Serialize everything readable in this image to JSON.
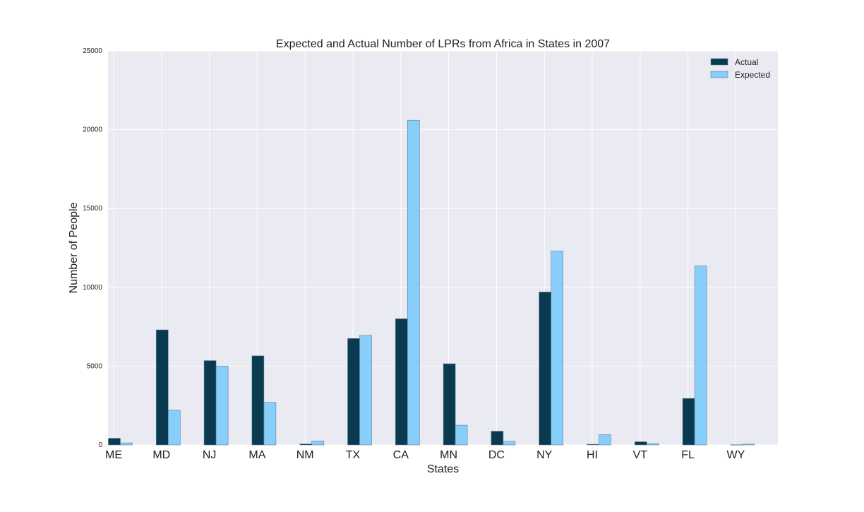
{
  "chart_data": {
    "type": "bar",
    "title": "Expected and Actual Number of LPRs from Africa in States in 2007",
    "xlabel": "States",
    "ylabel": "Number of People",
    "categories": [
      "ME",
      "MD",
      "NJ",
      "MA",
      "NM",
      "TX",
      "CA",
      "MN",
      "DC",
      "NY",
      "HI",
      "VT",
      "FL",
      "WY"
    ],
    "series": [
      {
        "name": "Actual",
        "color": "#0a3a4f",
        "values": [
          420,
          7300,
          5350,
          5650,
          60,
          6750,
          8000,
          5150,
          870,
          9700,
          40,
          200,
          2950,
          10
        ]
      },
      {
        "name": "Expected",
        "color": "#87cefa",
        "values": [
          130,
          2200,
          5000,
          2700,
          250,
          6950,
          20600,
          1250,
          230,
          12300,
          650,
          80,
          11350,
          50
        ]
      }
    ],
    "ylim": [
      0,
      25000
    ],
    "yticks": [
      0,
      5000,
      10000,
      15000,
      20000,
      25000
    ],
    "grid": true,
    "legend_position": "top-right",
    "colors": {
      "plot_background": "#eaeaf2",
      "grid": "#ffffff",
      "bar_edge": "#5a7f99"
    }
  }
}
